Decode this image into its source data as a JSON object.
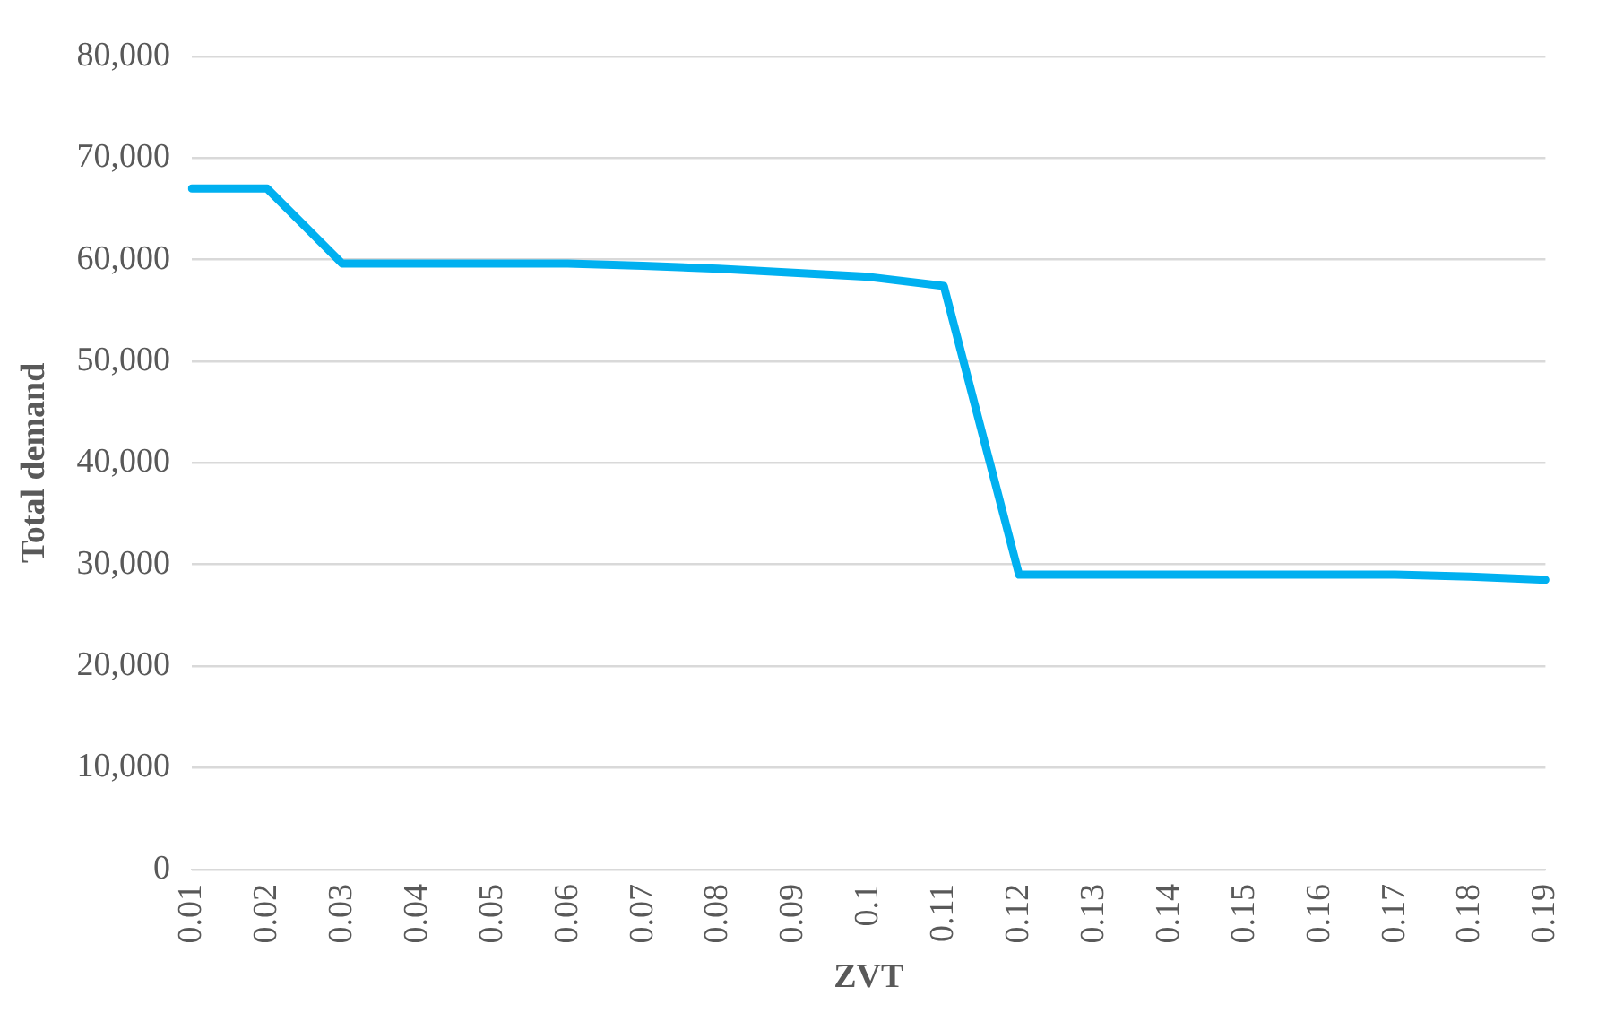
{
  "chart_data": {
    "type": "line",
    "xlabel": "ZVT",
    "ylabel": "Total demand",
    "categories": [
      "0.01",
      "0.02",
      "0.03",
      "0.04",
      "0.05",
      "0.06",
      "0.07",
      "0.08",
      "0.09",
      "0.1",
      "0.11",
      "0.12",
      "0.13",
      "0.14",
      "0.15",
      "0.16",
      "0.17",
      "0.18",
      "0.19"
    ],
    "series": [
      {
        "color": "#00b0f0",
        "values": [
          67000,
          67000,
          59600,
          59600,
          59600,
          59600,
          59400,
          59100,
          58700,
          58300,
          57400,
          29000,
          29000,
          29000,
          29000,
          29000,
          29000,
          28800,
          28500
        ]
      }
    ],
    "ylim": [
      0,
      80000
    ],
    "yticks": [
      0,
      {
        "value": 10000,
        "label": "10,000"
      },
      {
        "value": 20000,
        "label": "20,000"
      },
      {
        "value": 30000,
        "label": "30,000"
      },
      {
        "value": 40000,
        "label": "40,000"
      },
      {
        "value": 50000,
        "label": "50,000"
      },
      {
        "value": 60000,
        "label": "60,000"
      },
      {
        "value": 70000,
        "label": "70,000"
      },
      {
        "value": 80000,
        "label": "80,000"
      }
    ],
    "grid": "y",
    "legend": false,
    "marker": "none",
    "line_style": "solid"
  }
}
